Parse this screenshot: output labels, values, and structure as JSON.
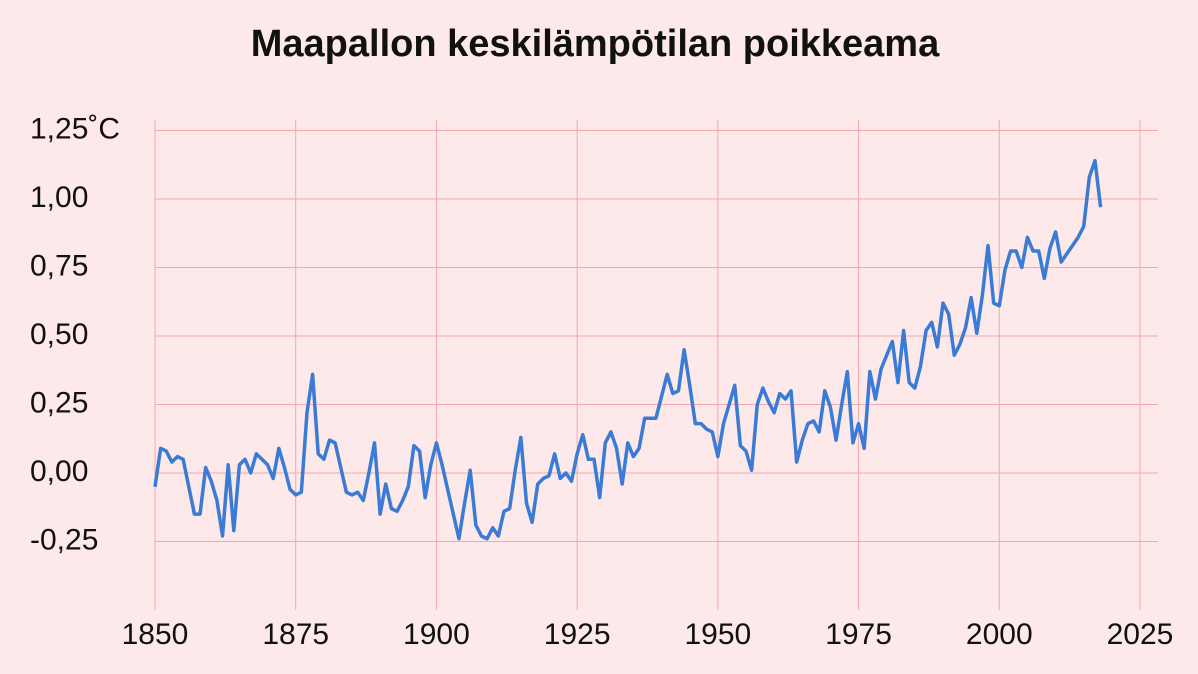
{
  "chart_data": {
    "type": "line",
    "title": "Maapallon keskilämpötilan poikkeama",
    "x": [
      1850,
      1851,
      1852,
      1853,
      1854,
      1855,
      1856,
      1857,
      1858,
      1859,
      1860,
      1861,
      1862,
      1863,
      1864,
      1865,
      1866,
      1867,
      1868,
      1869,
      1870,
      1871,
      1872,
      1873,
      1874,
      1875,
      1876,
      1877,
      1878,
      1879,
      1880,
      1881,
      1882,
      1883,
      1884,
      1885,
      1886,
      1887,
      1888,
      1889,
      1890,
      1891,
      1892,
      1893,
      1894,
      1895,
      1896,
      1897,
      1898,
      1899,
      1900,
      1901,
      1902,
      1903,
      1904,
      1905,
      1906,
      1907,
      1908,
      1909,
      1910,
      1911,
      1912,
      1913,
      1914,
      1915,
      1916,
      1917,
      1918,
      1919,
      1920,
      1921,
      1922,
      1923,
      1924,
      1925,
      1926,
      1927,
      1928,
      1929,
      1930,
      1931,
      1932,
      1933,
      1934,
      1935,
      1936,
      1937,
      1938,
      1939,
      1940,
      1941,
      1942,
      1943,
      1944,
      1945,
      1946,
      1947,
      1948,
      1949,
      1950,
      1951,
      1952,
      1953,
      1954,
      1955,
      1956,
      1957,
      1958,
      1959,
      1960,
      1961,
      1962,
      1963,
      1964,
      1965,
      1966,
      1967,
      1968,
      1969,
      1970,
      1971,
      1972,
      1973,
      1974,
      1975,
      1976,
      1977,
      1978,
      1979,
      1980,
      1981,
      1982,
      1983,
      1984,
      1985,
      1986,
      1987,
      1988,
      1989,
      1990,
      1991,
      1992,
      1993,
      1994,
      1995,
      1996,
      1997,
      1998,
      1999,
      2000,
      2001,
      2002,
      2003,
      2004,
      2005,
      2006,
      2007,
      2008,
      2009,
      2010,
      2011,
      2012,
      2013,
      2014,
      2015,
      2016,
      2017,
      2018
    ],
    "series": [
      {
        "color": "#3a7bd5",
        "values": [
          -0.05,
          0.09,
          0.08,
          0.04,
          0.06,
          0.05,
          -0.05,
          -0.15,
          -0.15,
          0.02,
          -0.03,
          -0.1,
          -0.23,
          0.03,
          -0.21,
          0.03,
          0.05,
          0.0,
          0.07,
          0.05,
          0.03,
          -0.02,
          0.09,
          0.02,
          -0.06,
          -0.08,
          -0.07,
          0.22,
          0.36,
          0.07,
          0.05,
          0.12,
          0.11,
          0.02,
          -0.07,
          -0.08,
          -0.07,
          -0.1,
          0.0,
          0.11,
          -0.15,
          -0.04,
          -0.13,
          -0.14,
          -0.1,
          -0.05,
          0.1,
          0.08,
          -0.09,
          0.03,
          0.11,
          0.03,
          -0.06,
          -0.15,
          -0.24,
          -0.11,
          0.01,
          -0.19,
          -0.23,
          -0.24,
          -0.2,
          -0.23,
          -0.14,
          -0.13,
          0.01,
          0.13,
          -0.11,
          -0.18,
          -0.04,
          -0.02,
          -0.01,
          0.07,
          -0.02,
          0.0,
          -0.03,
          0.07,
          0.14,
          0.05,
          0.05,
          -0.09,
          0.11,
          0.15,
          0.09,
          -0.04,
          0.11,
          0.06,
          0.09,
          0.2,
          0.2,
          0.2,
          0.28,
          0.36,
          0.29,
          0.3,
          0.45,
          0.32,
          0.18,
          0.18,
          0.16,
          0.15,
          0.06,
          0.18,
          0.25,
          0.32,
          0.1,
          0.08,
          0.01,
          0.25,
          0.31,
          0.26,
          0.22,
          0.29,
          0.27,
          0.3,
          0.04,
          0.12,
          0.18,
          0.19,
          0.15,
          0.3,
          0.24,
          0.12,
          0.25,
          0.37,
          0.11,
          0.18,
          0.09,
          0.37,
          0.27,
          0.38,
          0.43,
          0.48,
          0.33,
          0.52,
          0.33,
          0.31,
          0.39,
          0.52,
          0.55,
          0.46,
          0.62,
          0.58,
          0.43,
          0.47,
          0.53,
          0.64,
          0.51,
          0.65,
          0.83,
          0.62,
          0.61,
          0.74,
          0.81,
          0.81,
          0.75,
          0.86,
          0.81,
          0.81,
          0.71,
          0.82,
          0.88,
          0.77,
          0.8,
          0.83,
          0.86,
          0.9,
          1.08,
          1.14,
          0.97
        ]
      }
    ],
    "xlim": [
      1850,
      2025
    ],
    "xticks": [
      1850,
      1875,
      1900,
      1925,
      1950,
      1975,
      2000,
      2025
    ],
    "ylim": [
      -0.5,
      1.29
    ],
    "yticks": [
      {
        "value": -0.25,
        "label": "-0,25"
      },
      {
        "value": 0,
        "label": "0,00"
      },
      {
        "value": 0.25,
        "label": "0,25"
      },
      {
        "value": 0.5,
        "label": "0,50"
      },
      {
        "value": 0.75,
        "label": "0,75"
      },
      {
        "value": 1,
        "label": "1,00"
      },
      {
        "value": 1.25,
        "label": "1,25˚C"
      }
    ],
    "grid": true
  }
}
